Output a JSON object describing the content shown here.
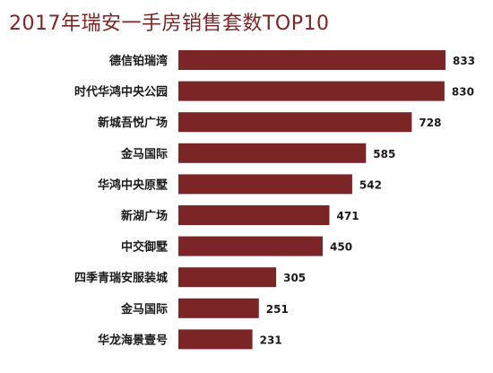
{
  "chart_data": {
    "type": "bar",
    "orientation": "horizontal",
    "title": "2017年瑞安一手房销售套数TOP10",
    "categories": [
      "德信铂瑞湾",
      "时代华鸿中央公园",
      "新城吾悦广场",
      "金马国际",
      "华鸿中央原墅",
      "新湖广场",
      "中交御墅",
      "四季青瑞安服装城",
      "金马国际",
      "华龙海景壹号"
    ],
    "values": [
      833,
      830,
      728,
      585,
      542,
      471,
      450,
      305,
      251,
      231
    ],
    "xlim": [
      0,
      833
    ],
    "grid": false,
    "legend": "none",
    "data_labels": true,
    "bar_color": "#7b2527"
  }
}
